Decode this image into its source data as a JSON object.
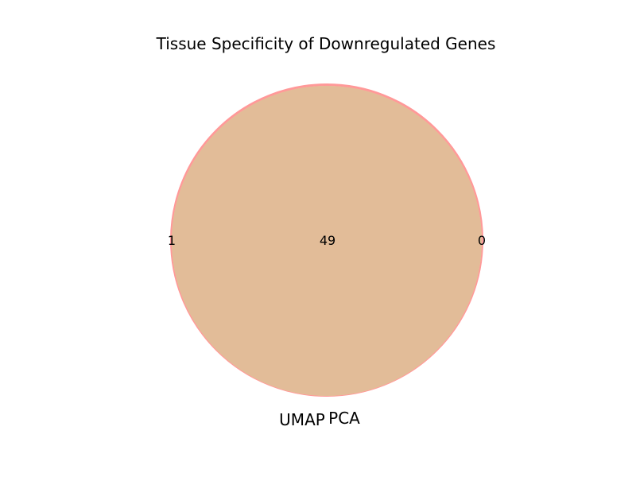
{
  "chart_data": {
    "type": "venn",
    "title": "Tissue Specificity of Downregulated Genes",
    "sets": [
      {
        "name": "UMAP",
        "only": 1,
        "color": "#ff9999"
      },
      {
        "name": "PCA",
        "only": 0,
        "color": "#ffcc99"
      }
    ],
    "intersection": 49,
    "intersection_color": "#e2bc98"
  }
}
